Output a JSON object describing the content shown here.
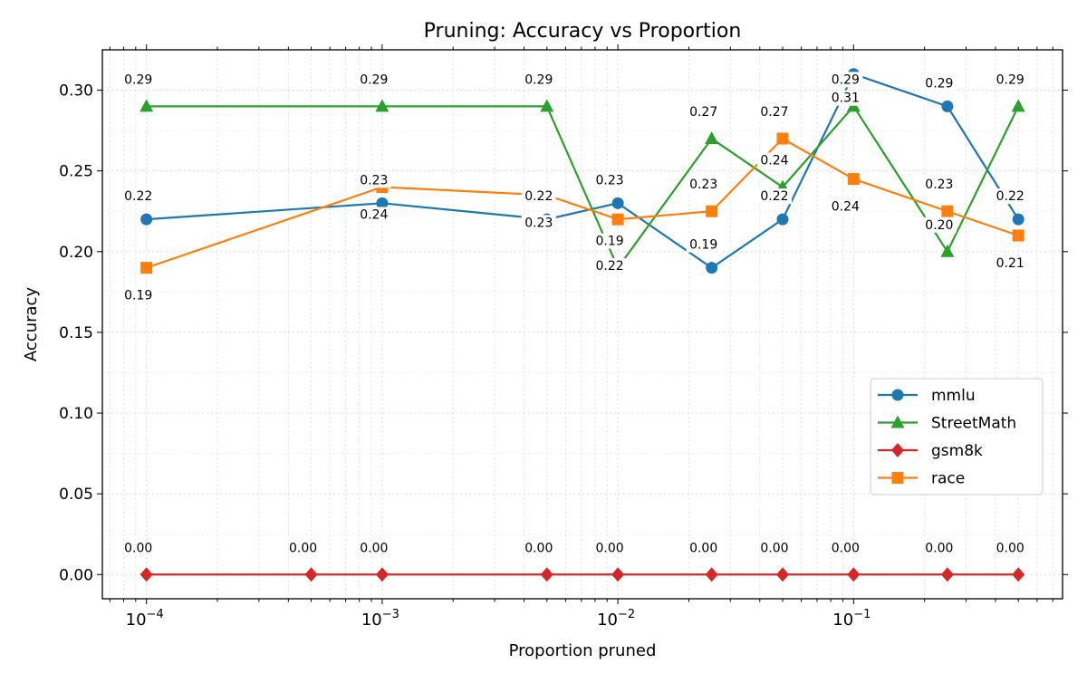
{
  "chart_data": {
    "type": "line",
    "title": "Pruning: Accuracy vs Proportion",
    "xlabel": "Proportion pruned",
    "ylabel": "Accuracy",
    "xscale": "log",
    "xlim": [
      6.5e-05,
      0.77
    ],
    "ylim": [
      -0.015,
      0.325
    ],
    "grid": true,
    "legend_position": "center-right",
    "x_tick_labels": [
      "10^-4",
      "10^-3",
      "10^-2",
      "10^-1"
    ],
    "y_tick_labels": [
      "0.00",
      "0.05",
      "0.10",
      "0.15",
      "0.20",
      "0.25",
      "0.30"
    ],
    "series": [
      {
        "name": "mmlu",
        "color": "#1f77b4",
        "marker": "circle",
        "x": [
          0.0001,
          0.001,
          0.005,
          0.01,
          0.025,
          0.05,
          0.1,
          0.25,
          0.5
        ],
        "y": [
          0.22,
          0.23,
          0.22,
          0.23,
          0.19,
          0.22,
          0.31,
          0.29,
          0.22
        ],
        "labels": [
          "0.22",
          "0.23",
          "0.22",
          "0.23",
          "0.19",
          "0.22",
          "0.31",
          "0.29",
          "0.22"
        ]
      },
      {
        "name": "StreetMath",
        "color": "#2ca02c",
        "marker": "triangle",
        "x": [
          0.0001,
          0.001,
          0.005,
          0.01,
          0.025,
          0.05,
          0.1,
          0.25,
          0.5
        ],
        "y": [
          0.29,
          0.29,
          0.29,
          0.19,
          0.27,
          0.24,
          0.29,
          0.2,
          0.29
        ],
        "labels": [
          "0.29",
          "0.29",
          "0.29",
          "0.19",
          "0.27",
          "0.24",
          "0.29",
          "0.20",
          "0.29"
        ]
      },
      {
        "name": "gsm8k",
        "color": "#d62728",
        "marker": "diamond",
        "x": [
          0.0001,
          0.0005,
          0.001,
          0.005,
          0.01,
          0.025,
          0.05,
          0.1,
          0.25,
          0.5
        ],
        "y": [
          0,
          0,
          0,
          0,
          0,
          0,
          0,
          0,
          0,
          0
        ],
        "labels": [
          "0.00",
          "0.00",
          "0.00",
          "0.00",
          "0.00",
          "0.00",
          "0.00",
          "0.00",
          "0.00",
          "0.00"
        ]
      },
      {
        "name": "race",
        "color": "#ff7f0e",
        "marker": "square",
        "x": [
          0.0001,
          0.001,
          0.005,
          0.01,
          0.025,
          0.05,
          0.1,
          0.25,
          0.5
        ],
        "y": [
          0.19,
          0.24,
          0.235,
          0.22,
          0.225,
          0.27,
          0.245,
          0.225,
          0.21
        ],
        "labels": [
          "0.19",
          "0.24",
          "0.23",
          "0.22",
          "0.23",
          "0.27",
          "0.24",
          "0.23",
          "0.21"
        ]
      }
    ]
  }
}
